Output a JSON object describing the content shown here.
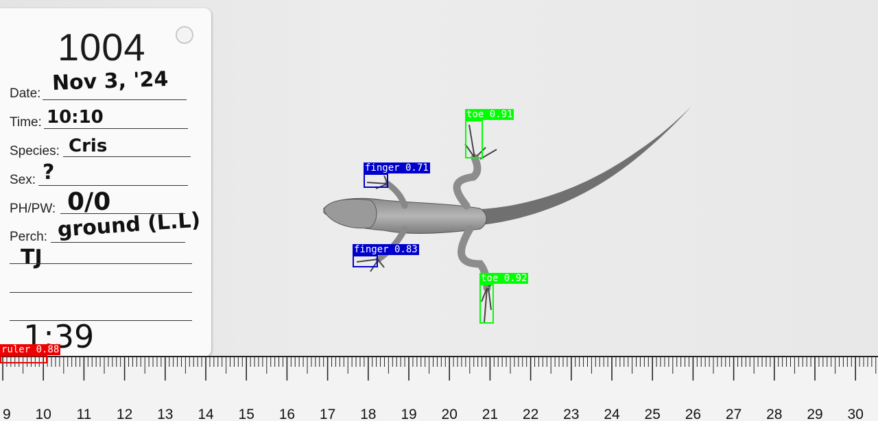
{
  "card": {
    "number": "1004",
    "fields": [
      {
        "label": "Date:",
        "value": "Nov 3, '24"
      },
      {
        "label": "Time:",
        "value": "10:10"
      },
      {
        "label": "Species:",
        "value": "Cris"
      },
      {
        "label": "Sex:",
        "value": "?"
      },
      {
        "label": "PH/PW:",
        "value": "0/0"
      },
      {
        "label": "Perch:",
        "value": "ground (L.L)"
      }
    ],
    "extra_note": "TJ",
    "bottom_note": "1:39"
  },
  "ruler": {
    "numbers": [
      "9",
      "10",
      "11",
      "12",
      "13",
      "14",
      "15",
      "16",
      "17",
      "18",
      "19",
      "20",
      "21",
      "22",
      "23",
      "24",
      "25",
      "26",
      "27",
      "28",
      "29",
      "30"
    ]
  },
  "detections": [
    {
      "label": "toe 0.91",
      "class": "toe",
      "color": "#00ff00"
    },
    {
      "label": "finger 0.71",
      "class": "finger",
      "color": "#0000cc"
    },
    {
      "label": "finger 0.83",
      "class": "finger",
      "color": "#0000cc"
    },
    {
      "label": "toe 0.92",
      "class": "toe",
      "color": "#00ff00"
    },
    {
      "label": "ruler 0.88",
      "class": "ruler",
      "color": "#ee0000"
    }
  ]
}
